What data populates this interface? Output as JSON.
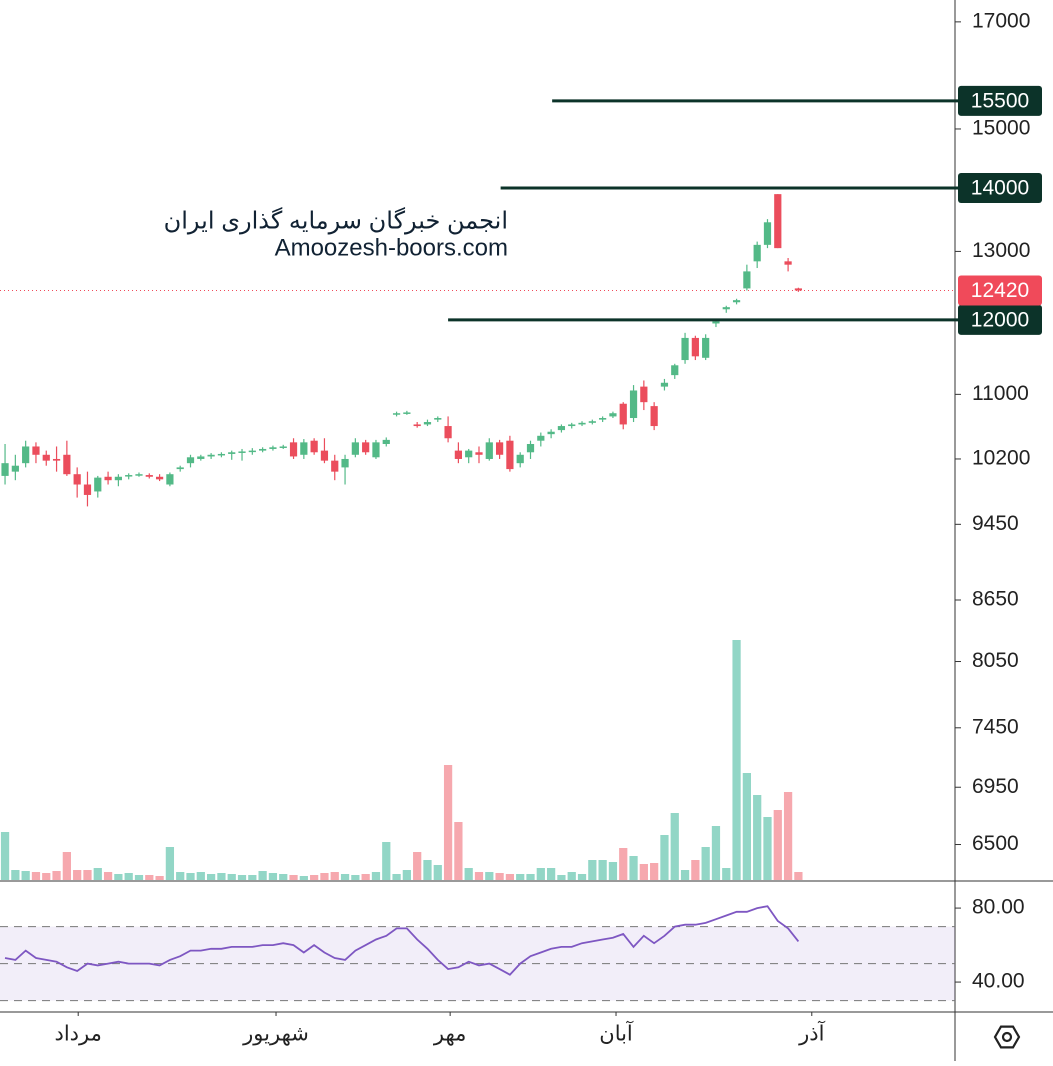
{
  "chart_data": [
    {
      "type": "candlestick",
      "log_scale": true,
      "ylim": [
        6236,
        17440
      ],
      "xlim": [
        -0.49,
        92.2
      ],
      "yticks": [
        17000,
        15000,
        13000,
        11000,
        10200,
        9450,
        8650,
        8050,
        7450,
        6950,
        6500
      ],
      "xticks": [
        {
          "value": 7.1,
          "label": "مرداد"
        },
        {
          "value": 26.3,
          "label": "شهریور"
        },
        {
          "value": 43.2,
          "label": "مهر"
        },
        {
          "value": 59.3,
          "label": "آبان"
        },
        {
          "value": 78.3,
          "label": "آذر"
        }
      ],
      "up_color": "#53b987",
      "down_color": "#eb4d5c",
      "volume_up_color": "#92d6c6",
      "volume_down_color": "#f6a8ae",
      "annotations": [
        "انجمن خبرگان سرمایه گذاری ایران",
        "Amoozesh-boors.com"
      ],
      "levels": [
        {
          "value": 15500,
          "start": 53.1
        },
        {
          "value": 14000,
          "start": 48.1
        },
        {
          "value": 12000,
          "start": 43.0
        }
      ],
      "level_color": "#0c3329",
      "last_price": 12420,
      "last_price_color": "#f04a5a",
      "candles": [
        [
          10000,
          10380,
          9900,
          10150
        ],
        [
          10050,
          10250,
          9950,
          10120
        ],
        [
          10150,
          10420,
          10100,
          10350
        ],
        [
          10350,
          10400,
          10150,
          10250
        ],
        [
          10250,
          10300,
          10120,
          10180
        ],
        [
          10200,
          10350,
          10050,
          10180
        ],
        [
          10250,
          10420,
          10000,
          10020
        ],
        [
          10020,
          10100,
          9750,
          9900
        ],
        [
          9900,
          10050,
          9650,
          9780
        ],
        [
          9820,
          10000,
          9750,
          9980
        ],
        [
          9990,
          10050,
          9900,
          9950
        ],
        [
          9950,
          10020,
          9880,
          9990
        ],
        [
          10000,
          10030,
          9960,
          10010
        ],
        [
          10010,
          10040,
          9990,
          10020
        ],
        [
          10010,
          10030,
          9970,
          9990
        ],
        [
          9990,
          10020,
          9940,
          9960
        ],
        [
          9900,
          10040,
          9880,
          10020
        ],
        [
          10080,
          10120,
          10050,
          10100
        ],
        [
          10150,
          10250,
          10100,
          10220
        ],
        [
          10200,
          10250,
          10180,
          10230
        ],
        [
          10230,
          10270,
          10200,
          10250
        ],
        [
          10250,
          10280,
          10220,
          10260
        ],
        [
          10260,
          10300,
          10190,
          10280
        ],
        [
          10280,
          10320,
          10180,
          10290
        ],
        [
          10290,
          10330,
          10250,
          10300
        ],
        [
          10300,
          10340,
          10280,
          10320
        ],
        [
          10320,
          10360,
          10300,
          10340
        ],
        [
          10340,
          10370,
          10320,
          10350
        ],
        [
          10400,
          10450,
          10200,
          10230
        ],
        [
          10250,
          10440,
          10200,
          10400
        ],
        [
          10420,
          10450,
          10250,
          10280
        ],
        [
          10300,
          10450,
          10150,
          10180
        ],
        [
          10180,
          10250,
          9950,
          10050
        ],
        [
          10100,
          10250,
          9900,
          10200
        ],
        [
          10250,
          10450,
          10220,
          10400
        ],
        [
          10400,
          10430,
          10250,
          10280
        ],
        [
          10220,
          10430,
          10200,
          10400
        ],
        [
          10380,
          10460,
          10350,
          10430
        ],
        [
          10750,
          10780,
          10720,
          10760
        ],
        [
          10760,
          10790,
          10740,
          10770
        ],
        [
          10620,
          10650,
          10580,
          10600
        ],
        [
          10620,
          10680,
          10600,
          10650
        ],
        [
          10680,
          10720,
          10650,
          10700
        ],
        [
          10600,
          10720,
          10400,
          10450
        ],
        [
          10300,
          10400,
          10150,
          10200
        ],
        [
          10220,
          10320,
          10150,
          10300
        ],
        [
          10280,
          10350,
          10150,
          10250
        ],
        [
          10200,
          10450,
          10180,
          10400
        ],
        [
          10400,
          10430,
          10200,
          10250
        ],
        [
          10420,
          10480,
          10050,
          10080
        ],
        [
          10150,
          10280,
          10100,
          10250
        ],
        [
          10280,
          10420,
          10200,
          10380
        ],
        [
          10420,
          10520,
          10350,
          10480
        ],
        [
          10500,
          10560,
          10450,
          10530
        ],
        [
          10550,
          10620,
          10520,
          10600
        ],
        [
          10600,
          10640,
          10570,
          10620
        ],
        [
          10620,
          10660,
          10600,
          10640
        ],
        [
          10640,
          10680,
          10620,
          10660
        ],
        [
          10680,
          10720,
          10650,
          10700
        ],
        [
          10720,
          10780,
          10700,
          10760
        ],
        [
          10880,
          10900,
          10560,
          10620
        ],
        [
          10700,
          11120,
          10650,
          11050
        ],
        [
          11100,
          11180,
          10800,
          10900
        ],
        [
          10850,
          10900,
          10550,
          10600
        ],
        [
          11100,
          11200,
          11050,
          11150
        ],
        [
          11250,
          11400,
          11200,
          11380
        ],
        [
          11450,
          11820,
          11400,
          11750
        ],
        [
          11750,
          11780,
          11450,
          11500
        ],
        [
          11480,
          11800,
          11450,
          11750
        ],
        [
          11950,
          12000,
          11900,
          11980
        ],
        [
          12150,
          12200,
          12100,
          12180
        ],
        [
          12250,
          12300,
          12220,
          12280
        ],
        [
          12450,
          12800,
          12420,
          12700
        ],
        [
          12850,
          13150,
          12750,
          13100
        ],
        [
          13100,
          13500,
          13050,
          13450
        ],
        [
          13900,
          13900,
          13050,
          13050
        ],
        [
          12850,
          12900,
          12700,
          12800
        ],
        [
          12450,
          12460,
          12400,
          12420
        ]
      ],
      "volumes": [
        48,
        10,
        9,
        8,
        7,
        9,
        28,
        10,
        10,
        12,
        8,
        6,
        7,
        5,
        5,
        4,
        33,
        8,
        7,
        8,
        6,
        7,
        6,
        5,
        5,
        9,
        7,
        6,
        5,
        4,
        5,
        7,
        8,
        6,
        5,
        6,
        8,
        38,
        6,
        10,
        28,
        20,
        15,
        115,
        58,
        12,
        8,
        8,
        7,
        6,
        6,
        6,
        12,
        12,
        5,
        8,
        6,
        20,
        20,
        18,
        32,
        24,
        16,
        17,
        45,
        67,
        10,
        20,
        33,
        54,
        12,
        240,
        107,
        85,
        63,
        70,
        88,
        8
      ]
    },
    {
      "type": "line",
      "ylim": [
        24.9,
        94.1
      ],
      "yticks": [
        {
          "value": 80,
          "label": "80.00"
        },
        {
          "value": 40,
          "label": "40.00"
        }
      ],
      "levels": [
        70,
        50,
        30
      ],
      "band": [
        30,
        70
      ],
      "color": "#7e57c2",
      "values": [
        53,
        52,
        57,
        53,
        52,
        51,
        48,
        46,
        50,
        49,
        50,
        51,
        50,
        50,
        50,
        49,
        52,
        54,
        57,
        57,
        58,
        58,
        59,
        59,
        59,
        60,
        60,
        61,
        60,
        56,
        60,
        56,
        53,
        52,
        57,
        60,
        63,
        65,
        69,
        69,
        63,
        58,
        52,
        47,
        48,
        51,
        49,
        50,
        47,
        44,
        50,
        54,
        56,
        58,
        59,
        59,
        61,
        62,
        63,
        64,
        66,
        59,
        65,
        61,
        65,
        70,
        71,
        71,
        72,
        74,
        76,
        78,
        78,
        80,
        81,
        73,
        69,
        62
      ]
    }
  ]
}
